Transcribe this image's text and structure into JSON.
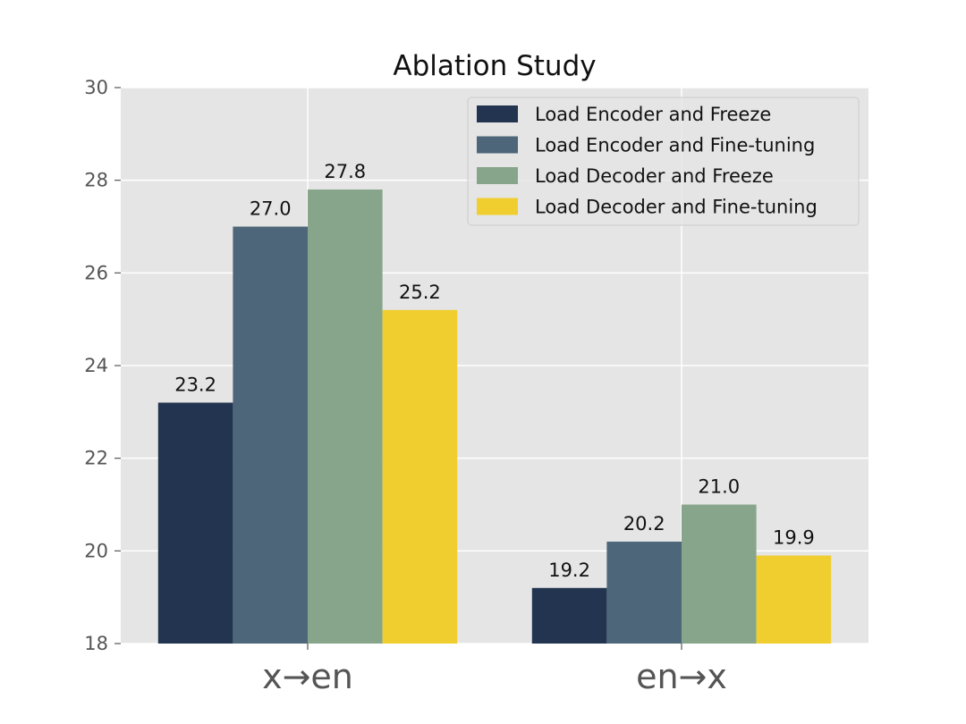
{
  "chart_data": {
    "type": "bar",
    "title": "Ablation Study",
    "xlabel": "",
    "ylabel": "",
    "categories": [
      "x→en",
      "en→x"
    ],
    "ylim": [
      18,
      30
    ],
    "yticks": [
      18,
      20,
      22,
      24,
      26,
      28,
      30
    ],
    "grid": true,
    "legend_position": "top-right",
    "series": [
      {
        "name": "Load Encoder and Freeze",
        "values": [
          23.2,
          19.2
        ],
        "labels": [
          "23.2",
          "19.2"
        ],
        "color": "#22344f"
      },
      {
        "name": "Load Encoder and Fine-tuning",
        "values": [
          27.0,
          20.2
        ],
        "labels": [
          "27.0",
          "20.2"
        ],
        "color": "#4d6679"
      },
      {
        "name": "Load Decoder and Freeze",
        "values": [
          27.8,
          21.0
        ],
        "labels": [
          "27.8",
          "21.0"
        ],
        "color": "#87a58a"
      },
      {
        "name": "Load Decoder and Fine-tuning",
        "values": [
          25.2,
          19.9
        ],
        "labels": [
          "25.2",
          "19.9"
        ],
        "color": "#f0ce30"
      }
    ],
    "colors": {
      "plot_background": "#e5e5e5",
      "grid": "#ffffff",
      "tick": "#555555"
    }
  }
}
